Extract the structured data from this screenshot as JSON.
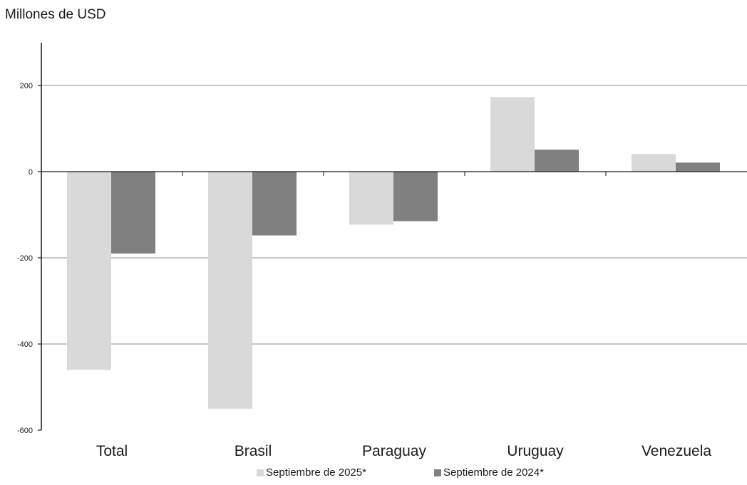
{
  "unit_label": "Millones de USD",
  "chart_data": {
    "type": "bar",
    "categories": [
      "Total",
      "Brasil",
      "Paraguay",
      "Uruguay",
      "Venezuela"
    ],
    "series": [
      {
        "name": "Septiembre de 2025*",
        "color": "#d9d9d9",
        "values": [
          -460,
          -550,
          -123,
          173,
          41
        ]
      },
      {
        "name": "Septiembre de 2024*",
        "color": "#808080",
        "values": [
          -190,
          -148,
          -115,
          51,
          21
        ]
      }
    ],
    "ylim": [
      -600,
      200
    ],
    "yticks": [
      200,
      0,
      -200,
      -400,
      -600
    ],
    "grid": true,
    "legend_position": "bottom"
  }
}
